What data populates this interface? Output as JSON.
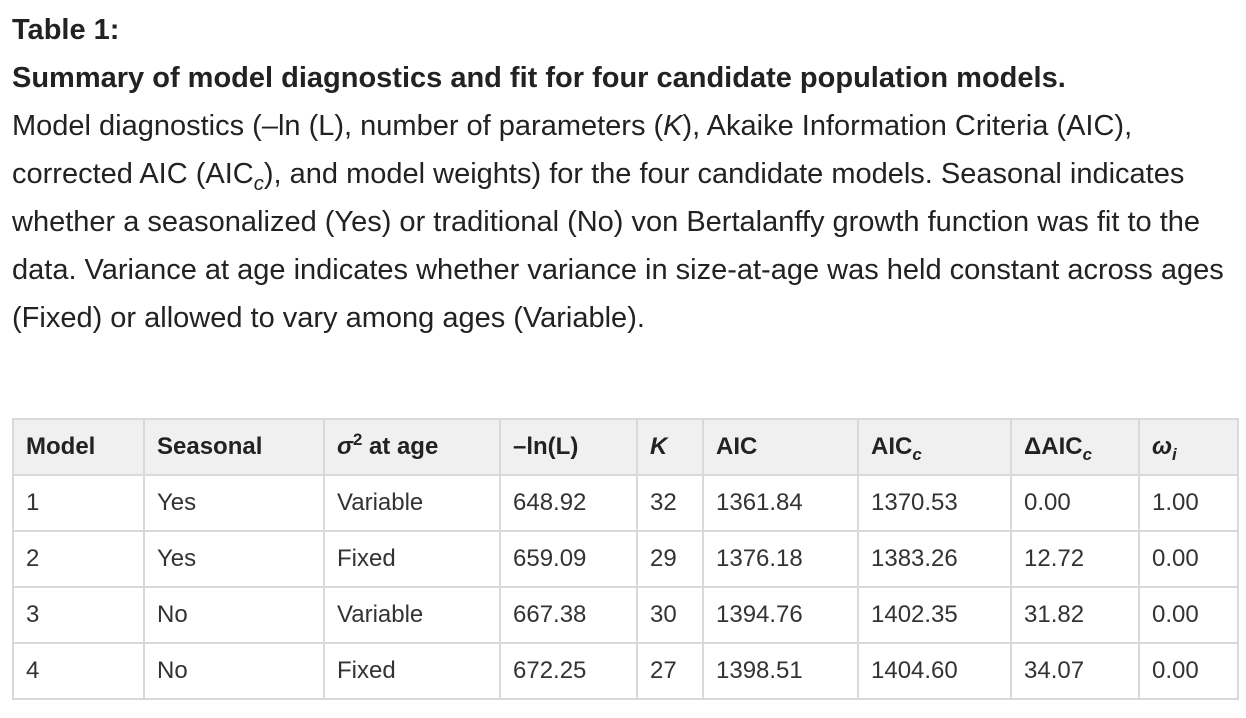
{
  "caption": {
    "label": "Table 1:",
    "title": "Summary of model diagnostics and fit for four candidate population models.",
    "desc_1": "Model diagnostics (–ln (L), number of parameters (",
    "desc_K": "K",
    "desc_2": "), Akaike Information Criteria (AIC), corrected AIC (AIC",
    "desc_c": "c",
    "desc_3": "), and model weights) for the four candidate models. Seasonal indicates whether a seasonalized (Yes) or traditional (No) von Bertalanffy growth function was fit to the data. Variance at age indicates whether variance in size-at-age was held constant across ages (Fixed) or allowed to vary among ages (Variable)."
  },
  "table": {
    "headers": {
      "model": "Model",
      "seasonal": "Seasonal",
      "sigma_sym": "σ",
      "sigma_sup": "2",
      "sigma_rest": " at age",
      "lnl": "–ln(L)",
      "k": "K",
      "aic": "AIC",
      "aicc_base": "AIC",
      "aicc_sub": "c",
      "daicc_base": "ΔAIC",
      "daicc_sub": "c",
      "omega_sym": "ω",
      "omega_sub": "i"
    },
    "rows": [
      {
        "model": "1",
        "seasonal": "Yes",
        "variance": "Variable",
        "lnl": "648.92",
        "k": "32",
        "aic": "1361.84",
        "aicc": "1370.53",
        "daicc": "0.00",
        "w": "1.00"
      },
      {
        "model": "2",
        "seasonal": "Yes",
        "variance": "Fixed",
        "lnl": "659.09",
        "k": "29",
        "aic": "1376.18",
        "aicc": "1383.26",
        "daicc": "12.72",
        "w": "0.00"
      },
      {
        "model": "3",
        "seasonal": "No",
        "variance": "Variable",
        "lnl": "667.38",
        "k": "30",
        "aic": "1394.76",
        "aicc": "1402.35",
        "daicc": "31.82",
        "w": "0.00"
      },
      {
        "model": "4",
        "seasonal": "No",
        "variance": "Fixed",
        "lnl": "672.25",
        "k": "27",
        "aic": "1398.51",
        "aicc": "1404.60",
        "daicc": "34.07",
        "w": "0.00"
      }
    ]
  }
}
